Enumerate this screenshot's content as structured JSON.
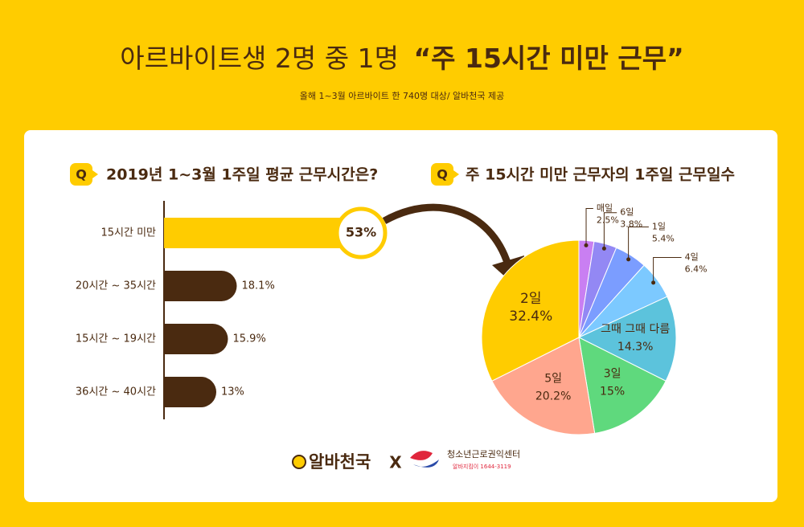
{
  "header": {
    "title": "아르바이트생 2명 중 1명",
    "title_highlight": "“주 15시간 미만 근무”",
    "subtitle": "올해 1~3월 아르바이트 한 740명 대상/ 알바천국 제공"
  },
  "question_badge": "Q",
  "chart_data": [
    {
      "type": "bar",
      "orientation": "horizontal",
      "title": "2019년 1~3월 1주일 평균 근무시간은?",
      "categories": [
        "15시간 미만",
        "20시간 ~ 35시간",
        "15시간 ~ 19시간",
        "36시간 ~ 40시간"
      ],
      "values": [
        53,
        18.1,
        15.9,
        13
      ],
      "value_labels": [
        "53%",
        "18.1%",
        "15.9%",
        "13%"
      ],
      "colors": [
        "#ffcc00",
        "#4a2a10",
        "#4a2a10",
        "#4a2a10"
      ]
    },
    {
      "type": "pie",
      "title": "주 15시간 미만 근무자의 1주일 근무일수",
      "categories": [
        "매일",
        "6일",
        "1일",
        "4일",
        "그때 그때 다름",
        "3일",
        "5일",
        "2일"
      ],
      "values": [
        2.5,
        3.8,
        5.4,
        6.4,
        14.3,
        15,
        20.2,
        32.4
      ],
      "value_labels": [
        "2.5%",
        "3.8%",
        "5.4%",
        "6.4%",
        "14.3%",
        "15%",
        "20.2%",
        "32.4%"
      ],
      "colors": [
        "#c97ff2",
        "#9388f4",
        "#7b9dff",
        "#7cc9ff",
        "#5cc3dc",
        "#5fd97d",
        "#ffa68e",
        "#ffcc00"
      ]
    }
  ],
  "footer": {
    "brand": "알바천국",
    "separator": "X",
    "partner": "청소년근로권익센터",
    "hotline": "알바지킴이 1644-3119"
  }
}
